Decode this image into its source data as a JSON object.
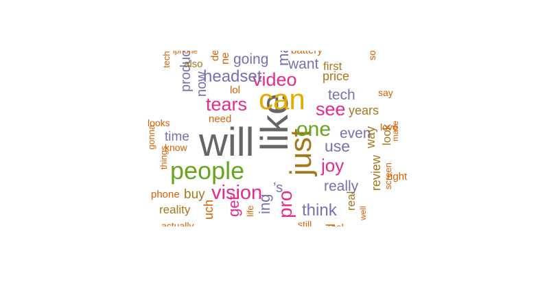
{
  "palette": {
    "gray": "#666666",
    "gold": "#e6ab02",
    "green": "#66a61e",
    "pink": "#e7298a",
    "purple": "#7570b3",
    "orange": "#d95f02",
    "brown": "#a6761d",
    "teal": "#1b9e77"
  },
  "words": [
    {
      "text": "will",
      "color": "gray"
    },
    {
      "text": "like",
      "color": "gray"
    },
    {
      "text": "just",
      "color": "brown"
    },
    {
      "text": "can",
      "color": "gold"
    },
    {
      "text": "people",
      "color": "green"
    },
    {
      "text": "one",
      "color": "green"
    },
    {
      "text": "vision",
      "color": "pink"
    },
    {
      "text": "tears",
      "color": "pink"
    },
    {
      "text": "video",
      "color": "pink"
    },
    {
      "text": "see",
      "color": "pink"
    },
    {
      "text": "joy",
      "color": "pink"
    },
    {
      "text": "headset",
      "color": "purple"
    },
    {
      "text": "going",
      "color": "purple"
    },
    {
      "text": "want",
      "color": "purple"
    },
    {
      "text": "tech",
      "color": "purple"
    },
    {
      "text": "even",
      "color": "purple"
    },
    {
      "text": "use",
      "color": "purple"
    },
    {
      "text": "really",
      "color": "purple"
    },
    {
      "text": "think",
      "color": "purple"
    },
    {
      "text": "time",
      "color": "purple"
    },
    {
      "text": "product",
      "color": "purple"
    },
    {
      "text": "now",
      "color": "purple"
    },
    {
      "text": "buy",
      "color": "brown"
    },
    {
      "text": "first",
      "color": "brown"
    },
    {
      "text": "price",
      "color": "brown"
    },
    {
      "text": "years",
      "color": "brown"
    },
    {
      "text": "way",
      "color": "brown"
    },
    {
      "text": "review",
      "color": "brown"
    },
    {
      "text": "look",
      "color": "brown"
    },
    {
      "text": "real",
      "color": "brown"
    },
    {
      "text": "reality",
      "color": "brown"
    },
    {
      "text": "also",
      "color": "brown"
    },
    {
      "text": "need",
      "color": "orange"
    },
    {
      "text": "lol",
      "color": "orange"
    },
    {
      "text": "know",
      "color": "orange"
    },
    {
      "text": "looks",
      "color": "orange"
    },
    {
      "text": "phone",
      "color": "orange"
    },
    {
      "text": "right",
      "color": "orange"
    },
    {
      "text": "love",
      "color": "orange"
    },
    {
      "text": "say",
      "color": "orange"
    },
    {
      "text": "made",
      "color": "orange"
    },
    {
      "text": "screen",
      "color": "orange"
    },
    {
      "text": "gonna",
      "color": "orange"
    },
    {
      "text": "things",
      "color": "orange"
    },
    {
      "text": "technology",
      "color": "orange"
    },
    {
      "text": "actually",
      "color": "orange"
    },
    {
      "text": "life",
      "color": "orange"
    },
    {
      "text": "still",
      "color": "orange"
    },
    {
      "text": "well",
      "color": "orange"
    },
    {
      "text": "somethin",
      "color": "orange"
    },
    {
      "text": "iphone",
      "color": "orange"
    },
    {
      "text": "battery",
      "color": "orange"
    },
    {
      "text": "get",
      "color": "pink"
    },
    {
      "text": "pro",
      "color": "pink"
    },
    {
      "text": "ing",
      "color": "purple"
    },
    {
      "text": "ma",
      "color": "purple"
    },
    {
      "text": "’s",
      "color": "purple"
    },
    {
      "text": "uch",
      "color": "orange"
    },
    {
      "text": "ne",
      "color": "orange"
    },
    {
      "text": "dev",
      "color": "orange"
    },
    {
      "text": "d",
      "color": "orange"
    },
    {
      "text": "ool",
      "color": "orange"
    }
  ]
}
